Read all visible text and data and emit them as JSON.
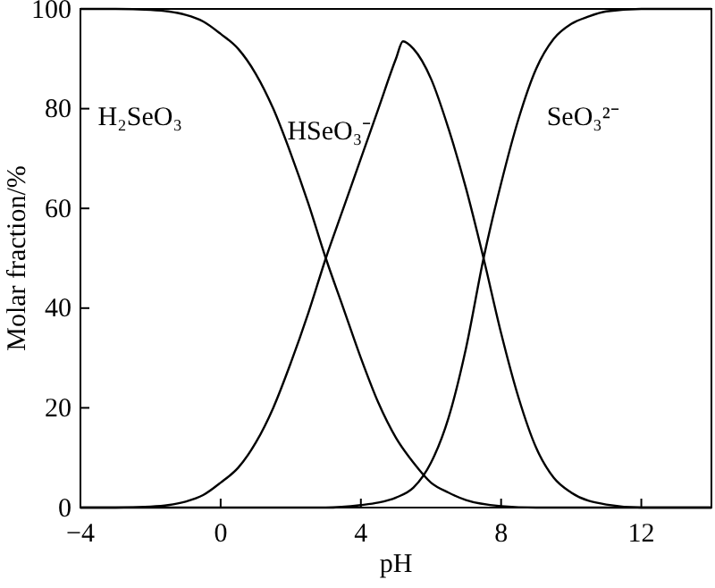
{
  "chart_data": {
    "type": "line",
    "xlabel": "pH",
    "ylabel": "Molar fraction/%",
    "xlim": [
      -4,
      14
    ],
    "xticks": [
      {
        "value": -4,
        "label": "−4"
      },
      0,
      4,
      8,
      12
    ],
    "ylim": [
      0,
      100
    ],
    "yticks": [
      0,
      20,
      40,
      60,
      80,
      100
    ],
    "marker": "none",
    "line_style": "solid",
    "series": [
      {
        "name": "H₂SeO₃",
        "color": "#000000",
        "x": [
          -4,
          -3,
          -2,
          -1.5,
          -1,
          -0.5,
          0,
          0.5,
          1,
          1.5,
          2,
          2.5,
          3,
          3.5,
          4,
          4.5,
          5,
          5.5,
          6,
          6.5,
          7,
          8,
          9,
          14
        ],
        "values": [
          100,
          100,
          99.8,
          99.5,
          98.8,
          97.5,
          95,
          92,
          87,
          80,
          71,
          61,
          50,
          40,
          30,
          21,
          14,
          9,
          5,
          3,
          1.5,
          0.3,
          0,
          0
        ]
      },
      {
        "name": "HSeO₃⁻",
        "color": "#000000",
        "x": [
          -4,
          -3,
          -2,
          -1.5,
          -1,
          -0.5,
          0,
          0.5,
          1,
          1.5,
          2,
          2.5,
          3,
          3.5,
          4,
          4.5,
          5,
          5.2,
          5.5,
          6,
          6.5,
          7,
          7.5,
          8,
          8.5,
          9,
          9.5,
          10,
          11,
          12,
          14
        ],
        "values": [
          0,
          0,
          0.2,
          0.5,
          1.2,
          2.5,
          5,
          8,
          13,
          20,
          29,
          39,
          50,
          60,
          70,
          80,
          90,
          93.5,
          92,
          86,
          76,
          64,
          50,
          35,
          22,
          12,
          6,
          3,
          0.6,
          0,
          0
        ]
      },
      {
        "name": "SeO₃²⁻",
        "color": "#000000",
        "x": [
          -4,
          3,
          4,
          4.5,
          5,
          5.5,
          6,
          6.5,
          7,
          7.5,
          8,
          8.5,
          9,
          9.5,
          10,
          10.5,
          11,
          12,
          14
        ],
        "values": [
          0,
          0,
          0.5,
          1,
          2,
          4,
          9,
          18,
          32,
          50,
          65,
          78,
          88,
          94,
          97,
          98.5,
          99.5,
          100,
          100
        ]
      }
    ]
  }
}
